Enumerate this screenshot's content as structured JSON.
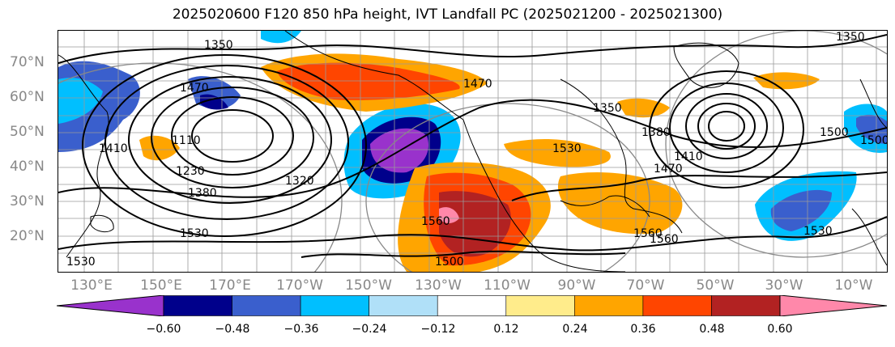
{
  "title": "2025020600 F120 850 hPa height, IVT Landfall PC (2025021200 - 2025021300)",
  "lat_labels": [
    "70°N",
    "60°N",
    "50°N",
    "40°N",
    "30°N",
    "20°N"
  ],
  "lon_labels": [
    "130°E",
    "150°E",
    "170°E",
    "170°W",
    "150°W",
    "130°W",
    "110°W",
    "90°W",
    "70°W",
    "50°W",
    "30°W",
    "10°W"
  ],
  "contour_labels": [
    "1350",
    "1350",
    "1350",
    "1470",
    "1410",
    "1110",
    "1230",
    "1380",
    "1530",
    "1530",
    "1320",
    "1560",
    "1500",
    "1560",
    "1530",
    "1500",
    "1470",
    "1530",
    "1380",
    "1410",
    "1470",
    "1560",
    "1500"
  ],
  "colorbar": {
    "ticks": [
      "−0.60",
      "−0.48",
      "−0.36",
      "−0.24",
      "−0.12",
      "0.12",
      "0.24",
      "0.36",
      "0.48",
      "0.60"
    ],
    "colors": [
      "#9932cc",
      "#00008b",
      "#3a5fcd",
      "#00bfff",
      "#b0e0f8",
      "#ffffff",
      "#ffec8b",
      "#ffa500",
      "#ff4500",
      "#b22222",
      "#ff88aa"
    ]
  }
}
